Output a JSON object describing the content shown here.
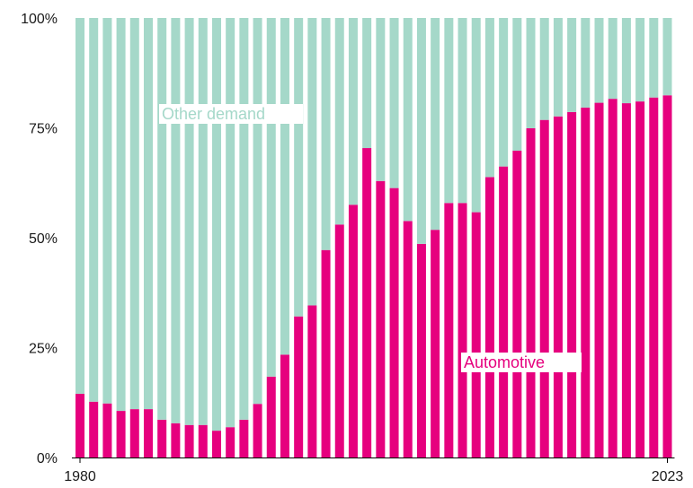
{
  "chart_data": {
    "type": "bar",
    "stacked": true,
    "percent": true,
    "x_start": 1980,
    "x_end": 2023,
    "x": [
      1980,
      1981,
      1982,
      1983,
      1984,
      1985,
      1986,
      1987,
      1988,
      1989,
      1990,
      1991,
      1992,
      1993,
      1994,
      1995,
      1996,
      1997,
      1998,
      1999,
      2000,
      2001,
      2002,
      2003,
      2004,
      2005,
      2006,
      2007,
      2008,
      2009,
      2010,
      2011,
      2012,
      2013,
      2014,
      2015,
      2016,
      2017,
      2018,
      2019,
      2020,
      2021,
      2022,
      2023
    ],
    "x_tick_labels": [
      "1980",
      "2023"
    ],
    "y_tick_labels": [
      "0%",
      "25%",
      "50%",
      "75%",
      "100%"
    ],
    "ylim": [
      0,
      100
    ],
    "grid": false,
    "series": [
      {
        "name": "Automotive",
        "color": "#e6007e",
        "values": [
          14.5,
          12.7,
          12.3,
          10.6,
          11.0,
          11.0,
          8.6,
          7.8,
          7.4,
          7.4,
          6.1,
          6.9,
          8.6,
          12.2,
          18.4,
          23.4,
          32.1,
          34.6,
          47.2,
          53.0,
          57.5,
          70.4,
          62.9,
          61.3,
          53.8,
          48.6,
          51.8,
          57.9,
          57.9,
          55.8,
          63.8,
          66.2,
          69.8,
          74.9,
          76.8,
          77.6,
          78.6,
          79.6,
          80.7,
          81.6,
          80.6,
          81.0,
          81.9,
          82.4
        ]
      },
      {
        "name": "Other demand",
        "color": "#a5d8c9",
        "values": [
          85.5,
          87.3,
          87.7,
          89.4,
          89.0,
          89.0,
          91.4,
          92.2,
          92.6,
          92.6,
          93.9,
          93.1,
          91.4,
          87.8,
          81.6,
          76.6,
          67.9,
          65.4,
          52.8,
          47.0,
          42.5,
          29.6,
          37.1,
          38.7,
          46.2,
          51.4,
          48.2,
          42.1,
          42.1,
          44.2,
          36.2,
          33.8,
          30.2,
          25.1,
          23.2,
          22.4,
          21.4,
          20.4,
          19.3,
          18.4,
          19.4,
          19.0,
          18.1,
          17.6
        ]
      }
    ]
  }
}
